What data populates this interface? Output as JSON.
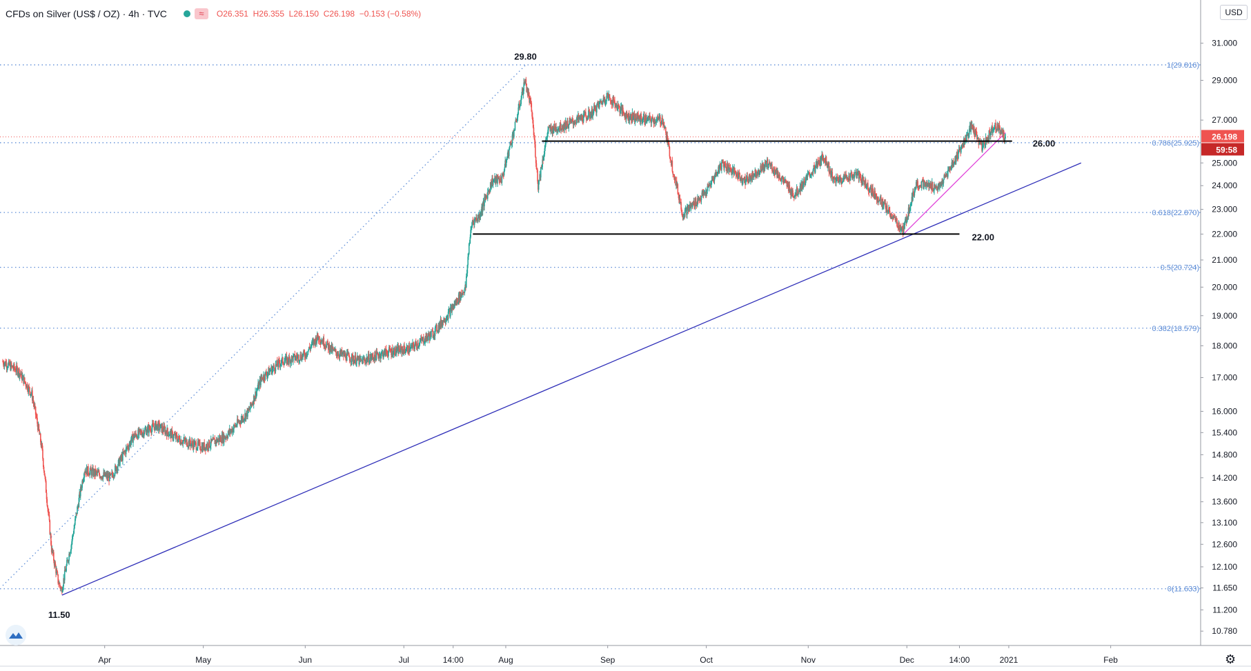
{
  "header": {
    "symbol": "CFDs on Silver (US$ / OZ) · 4h · TVC",
    "ohlc_open": "O26.351",
    "ohlc_high": "H26.355",
    "ohlc_low": "L26.150",
    "ohlc_close": "C26.198",
    "ohlc_change": "−0.153 (−0.58%)"
  },
  "currency": "USD",
  "price_badge": {
    "price": "26.198",
    "countdown": "59:58"
  },
  "colors": {
    "up": "#26a69a",
    "down": "#ef5350",
    "fib": "#5b8bd6",
    "trend_long": "#2e2eb8",
    "trend_short": "#e040d8",
    "level": "#000000"
  },
  "icons": {
    "logo": "tradingview-logo-icon",
    "settings": "gear-icon"
  },
  "chart_data": {
    "type": "candlestick",
    "scale": "log",
    "timeframe": "4h",
    "ylim": [
      10.5,
      32.2
    ],
    "y_ticks": [
      "31.000",
      "29.000",
      "27.000",
      "25.000",
      "24.000",
      "23.000",
      "22.000",
      "21.000",
      "20.000",
      "19.000",
      "18.000",
      "17.000",
      "16.000",
      "15.400",
      "14.800",
      "14.200",
      "13.600",
      "13.100",
      "12.600",
      "12.100",
      "11.650",
      "11.200",
      "10.780"
    ],
    "x_ticks": [
      "Apr",
      "May",
      "Jun",
      "Jul",
      "14:00",
      "Aug",
      "Sep",
      "Oct",
      "Nov",
      "Dec",
      "14:00",
      "2021",
      "Feb"
    ],
    "x_range": [
      "2020-03-01",
      "2021-02-25"
    ],
    "price_path": [
      [
        "2020-03-01",
        17.5
      ],
      [
        "2020-03-06",
        17.2
      ],
      [
        "2020-03-10",
        16.5
      ],
      [
        "2020-03-13",
        15.0
      ],
      [
        "2020-03-16",
        12.5
      ],
      [
        "2020-03-18",
        11.8
      ],
      [
        "2020-03-19",
        11.6
      ],
      [
        "2020-03-22",
        12.6
      ],
      [
        "2020-03-26",
        14.4
      ],
      [
        "2020-04-03",
        14.2
      ],
      [
        "2020-04-10",
        15.3
      ],
      [
        "2020-04-17",
        15.6
      ],
      [
        "2020-04-24",
        15.2
      ],
      [
        "2020-05-01",
        15.0
      ],
      [
        "2020-05-08",
        15.3
      ],
      [
        "2020-05-15",
        16.0
      ],
      [
        "2020-05-19",
        17.0
      ],
      [
        "2020-05-25",
        17.5
      ],
      [
        "2020-06-01",
        17.7
      ],
      [
        "2020-06-05",
        18.3
      ],
      [
        "2020-06-10",
        17.8
      ],
      [
        "2020-06-18",
        17.5
      ],
      [
        "2020-06-26",
        17.8
      ],
      [
        "2020-07-03",
        17.9
      ],
      [
        "2020-07-10",
        18.4
      ],
      [
        "2020-07-15",
        19.1
      ],
      [
        "2020-07-20",
        20.0
      ],
      [
        "2020-07-21",
        21.6
      ],
      [
        "2020-07-22",
        22.5
      ],
      [
        "2020-07-24",
        22.7
      ],
      [
        "2020-07-28",
        24.2
      ],
      [
        "2020-07-31",
        24.3
      ],
      [
        "2020-08-04",
        26.7
      ],
      [
        "2020-08-07",
        29.0
      ],
      [
        "2020-08-09",
        27.5
      ],
      [
        "2020-08-11",
        24.0
      ],
      [
        "2020-08-14",
        26.5
      ],
      [
        "2020-08-20",
        26.8
      ],
      [
        "2020-08-27",
        27.3
      ],
      [
        "2020-09-01",
        28.2
      ],
      [
        "2020-09-07",
        27.2
      ],
      [
        "2020-09-14",
        27.0
      ],
      [
        "2020-09-18",
        27.0
      ],
      [
        "2020-09-21",
        24.7
      ],
      [
        "2020-09-24",
        22.8
      ],
      [
        "2020-10-01",
        23.7
      ],
      [
        "2020-10-06",
        25.0
      ],
      [
        "2020-10-13",
        24.2
      ],
      [
        "2020-10-20",
        25.0
      ],
      [
        "2020-10-28",
        23.6
      ],
      [
        "2020-11-06",
        25.3
      ],
      [
        "2020-11-09",
        24.2
      ],
      [
        "2020-11-16",
        24.5
      ],
      [
        "2020-11-24",
        23.2
      ],
      [
        "2020-11-30",
        22.1
      ],
      [
        "2020-12-04",
        24.1
      ],
      [
        "2020-12-11",
        23.9
      ],
      [
        "2020-12-16",
        25.2
      ],
      [
        "2020-12-21",
        26.7
      ],
      [
        "2020-12-24",
        25.7
      ],
      [
        "2020-12-28",
        26.8
      ],
      [
        "2020-12-31",
        26.2
      ]
    ],
    "annotations": [
      {
        "text": "29.80",
        "date": "2020-08-07",
        "price": 29.8
      },
      {
        "text": "11.50",
        "date": "2020-03-19",
        "price": 11.5
      },
      {
        "text": "26.00",
        "date": "2021-01-02",
        "price": 26.0
      },
      {
        "text": "22.00",
        "date": "2020-12-17",
        "price": 22.0
      }
    ],
    "fib_levels": [
      {
        "label": "1(29.816)",
        "value": 29.816
      },
      {
        "label": "0.786(25.925)",
        "value": 25.925
      },
      {
        "label": "0.618(22.870)",
        "value": 22.87
      },
      {
        "label": "0.5(20.724)",
        "value": 20.724
      },
      {
        "label": "0.382(18.579)",
        "value": 18.579
      },
      {
        "label": "0(11.633)",
        "value": 11.633
      }
    ],
    "horizontal_levels": [
      {
        "value": 26.0,
        "from": "2020-08-12",
        "to": "2021-01-02"
      },
      {
        "value": 22.0,
        "from": "2020-07-22",
        "to": "2020-12-17"
      }
    ],
    "trend_lines": [
      {
        "name": "long-term support",
        "from": [
          "2020-03-19",
          11.5
        ],
        "to": [
          "2021-01-23",
          25.0
        ]
      },
      {
        "name": "short-term support",
        "from": [
          "2020-11-30",
          22.0
        ],
        "to": [
          "2020-12-31",
          26.4
        ]
      },
      {
        "name": "rally projection",
        "from": [
          "2020-03-01",
          11.7
        ],
        "to": [
          "2020-08-07",
          29.8
        ]
      }
    ],
    "last_price": 26.198
  }
}
